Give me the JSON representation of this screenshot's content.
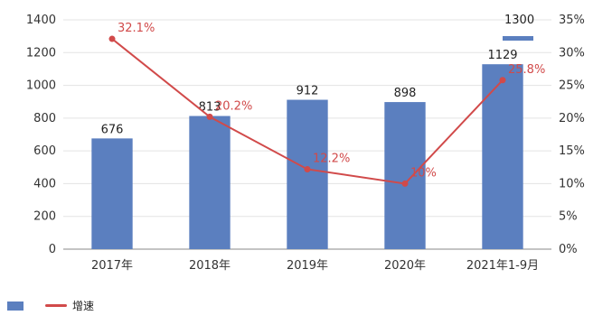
{
  "chart_data": {
    "type": "bar",
    "categories": [
      "2017年",
      "2018年",
      "2019年",
      "2020年",
      "2021年1-9月"
    ],
    "series": [
      {
        "name": "",
        "type": "bar",
        "axis": "left",
        "color": "#5b7fbf",
        "values": [
          676,
          813,
          912,
          898,
          1129
        ]
      },
      {
        "name": "",
        "type": "line",
        "axis": "right",
        "color": "#d14a4a",
        "values": [
          32.1,
          20.2,
          12.2,
          10.0,
          25.8
        ]
      }
    ],
    "y_left": {
      "ticks": [
        "0",
        "200",
        "400",
        "600",
        "800",
        "1000",
        "1200",
        "1400"
      ],
      "ylim": [
        0,
        1400
      ]
    },
    "y_right": {
      "ticks": [
        "0%",
        "5%",
        "10%",
        "15%",
        "20%",
        "25%",
        "30%",
        "35%"
      ],
      "ylim": [
        0,
        35
      ]
    },
    "bar_labels": [
      "676",
      "813",
      "912",
      "898",
      "1129"
    ],
    "line_labels": [
      "32.1%",
      "20.2%",
      "12.2%",
      "10%",
      "25.8%"
    ],
    "legend": {
      "bar_label": "",
      "line_label": "增速"
    },
    "top_right_annotation": "1300",
    "title": "",
    "xlabel": "",
    "ylabel": ""
  }
}
